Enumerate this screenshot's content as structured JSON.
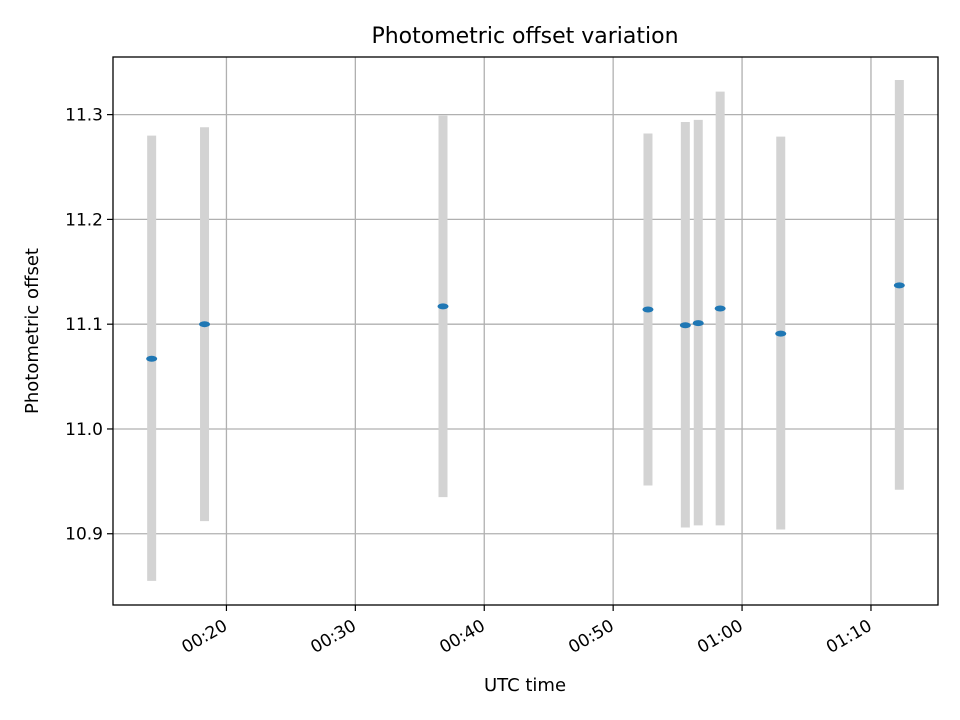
{
  "chart_data": {
    "type": "scatter",
    "title": "Photometric offset variation",
    "xlabel": "UTC time",
    "ylabel": "Photometric offset",
    "x_ticks": [
      "00:20",
      "00:30",
      "00:40",
      "00:50",
      "01:00",
      "01:10"
    ],
    "y_ticks": [
      "10.9",
      "11.0",
      "11.1",
      "11.2",
      "11.3"
    ],
    "x_tick_values_min": [
      20,
      30,
      40,
      50,
      60,
      70
    ],
    "y_tick_values": [
      10.9,
      11.0,
      11.1,
      11.2,
      11.3
    ],
    "xlim_min": [
      11.2,
      75.2
    ],
    "ylim": [
      10.832,
      11.355
    ],
    "grid": true,
    "points": [
      {
        "x": "00:14:12",
        "y": 11.067,
        "yerr_low": 10.855,
        "yerr_high": 11.28
      },
      {
        "x": "00:18:18",
        "y": 11.1,
        "yerr_low": 10.912,
        "yerr_high": 11.288
      },
      {
        "x": "00:36:48",
        "y": 11.117,
        "yerr_low": 10.935,
        "yerr_high": 11.299
      },
      {
        "x": "00:52:42",
        "y": 11.114,
        "yerr_low": 10.946,
        "yerr_high": 11.282
      },
      {
        "x": "00:55:36",
        "y": 11.099,
        "yerr_low": 10.906,
        "yerr_high": 11.293
      },
      {
        "x": "00:56:36",
        "y": 11.101,
        "yerr_low": 10.908,
        "yerr_high": 11.295
      },
      {
        "x": "00:58:18",
        "y": 11.115,
        "yerr_low": 10.908,
        "yerr_high": 11.322
      },
      {
        "x": "01:03:00",
        "y": 11.091,
        "yerr_low": 10.904,
        "yerr_high": 11.279
      },
      {
        "x": "01:12:12",
        "y": 11.137,
        "yerr_low": 10.942,
        "yerr_high": 11.333
      }
    ],
    "colors": {
      "marker": "#1f77b4",
      "errorbar": "#d3d3d3",
      "grid": "#b0b0b0",
      "axes": "#000000"
    }
  }
}
